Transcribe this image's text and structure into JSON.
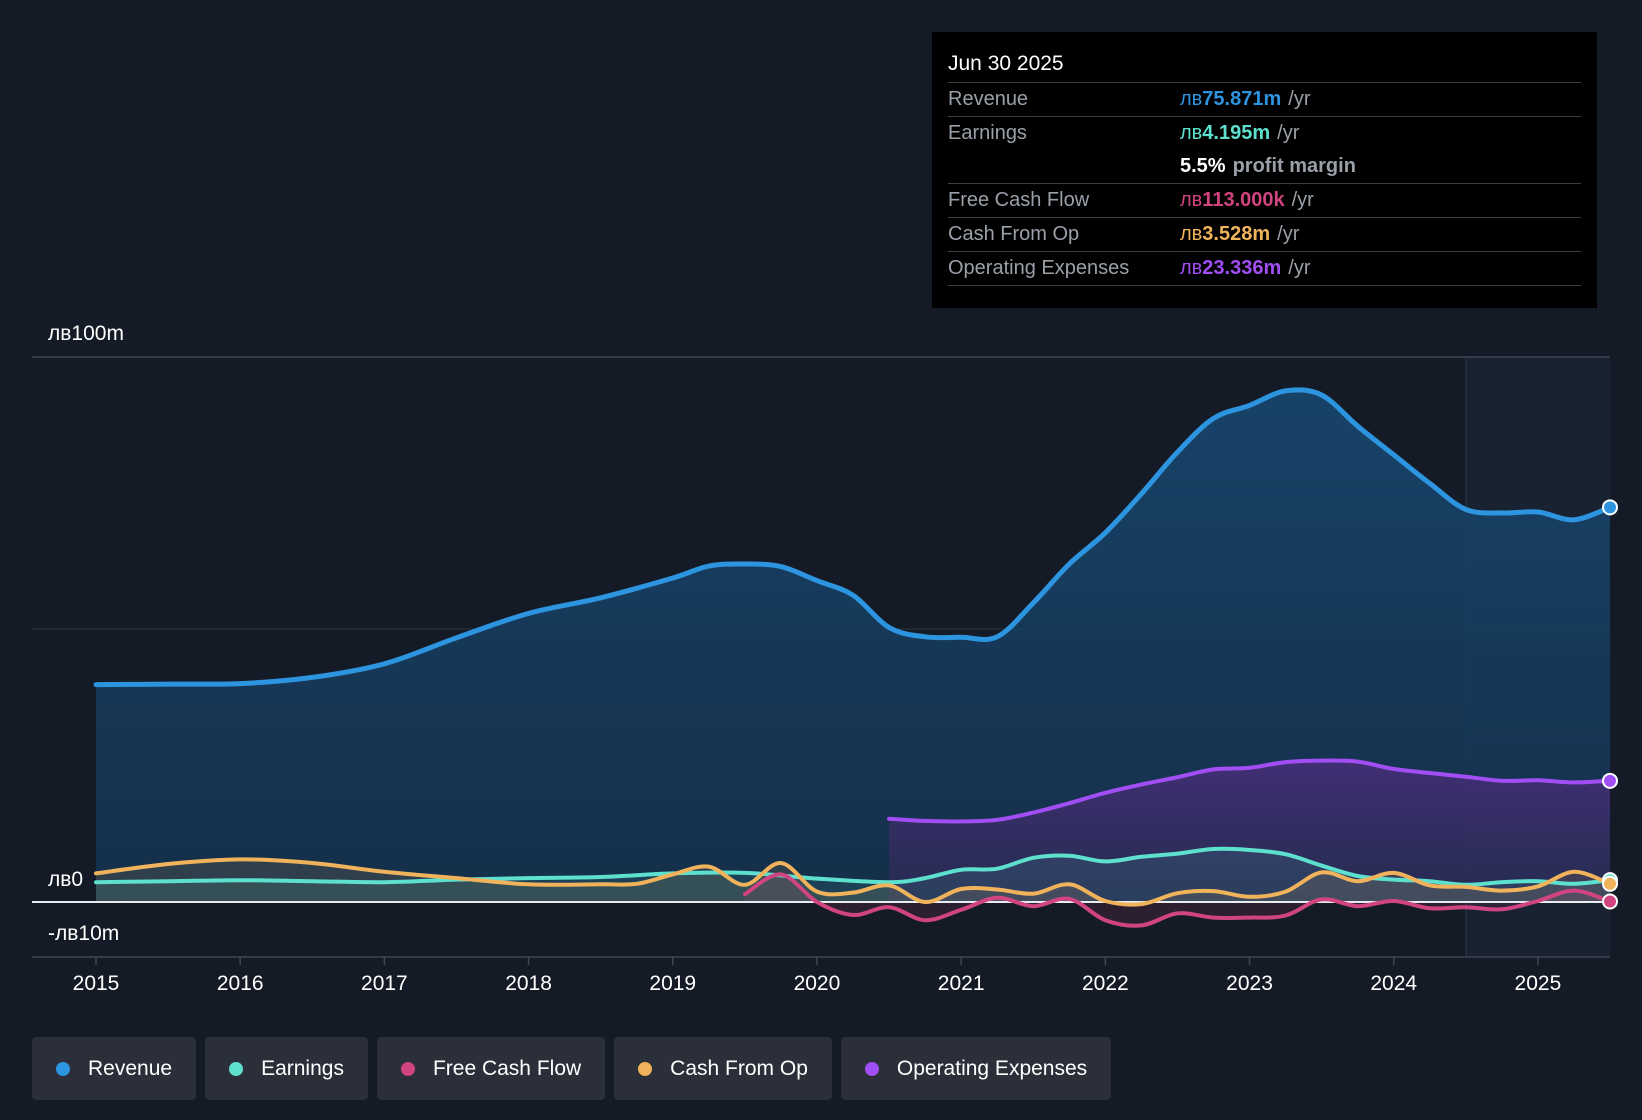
{
  "tooltip": {
    "date": "Jun 30 2025",
    "rows": [
      {
        "label": "Revenue",
        "currency": "лв",
        "value": "75.871m",
        "unit": "/yr",
        "color": "#2d94e0"
      },
      {
        "label": "Earnings",
        "currency": "лв",
        "value": "4.195m",
        "unit": "/yr",
        "color": "#5ee0cf"
      },
      {
        "label": "",
        "currency": "",
        "value": "5.5%",
        "unit": "profit margin",
        "color": "#ffffff"
      },
      {
        "label": "Free Cash Flow",
        "currency": "лв",
        "value": "113.000k",
        "unit": "/yr",
        "color": "#d0447f"
      },
      {
        "label": "Cash From Op",
        "currency": "лв",
        "value": "3.528m",
        "unit": "/yr",
        "color": "#f0b35c"
      },
      {
        "label": "Operating Expenses",
        "currency": "лв",
        "value": "23.336m",
        "unit": "/yr",
        "color": "#a24ef5"
      }
    ]
  },
  "legend": [
    {
      "label": "Revenue",
      "color": "#2d94e0"
    },
    {
      "label": "Earnings",
      "color": "#5ee0cf"
    },
    {
      "label": "Free Cash Flow",
      "color": "#d0447f"
    },
    {
      "label": "Cash From Op",
      "color": "#f0b35c"
    },
    {
      "label": "Operating Expenses",
      "color": "#a24ef5"
    }
  ],
  "chart_data": {
    "type": "area",
    "title": "",
    "xlabel": "",
    "ylabel": "",
    "x_ticks": [
      "2015",
      "2016",
      "2017",
      "2018",
      "2019",
      "2020",
      "2021",
      "2022",
      "2023",
      "2024",
      "2025"
    ],
    "y_ticks": [
      "лв100m",
      "лв0",
      "-лв10m"
    ],
    "ylim": [
      -10,
      100
    ],
    "xlim": [
      2015.0,
      2025.5
    ],
    "forecast_start": 2024.5,
    "series": [
      {
        "name": "Revenue",
        "color": "#2d94e0",
        "points": [
          [
            2015.0,
            41.8
          ],
          [
            2015.5,
            41.9
          ],
          [
            2016.0,
            42.0
          ],
          [
            2016.5,
            43.2
          ],
          [
            2017.0,
            45.8
          ],
          [
            2017.5,
            50.8
          ],
          [
            2018.0,
            55.5
          ],
          [
            2018.5,
            58.5
          ],
          [
            2019.0,
            62.3
          ],
          [
            2019.25,
            64.6
          ],
          [
            2019.5,
            65.0
          ],
          [
            2019.75,
            64.5
          ],
          [
            2020.0,
            61.8
          ],
          [
            2020.25,
            59.0
          ],
          [
            2020.5,
            52.8
          ],
          [
            2020.75,
            51.0
          ],
          [
            2021.0,
            50.9
          ],
          [
            2021.25,
            51.0
          ],
          [
            2021.5,
            57.5
          ],
          [
            2021.75,
            65.0
          ],
          [
            2022.0,
            71.0
          ],
          [
            2022.25,
            78.5
          ],
          [
            2022.5,
            86.5
          ],
          [
            2022.75,
            93.0
          ],
          [
            2023.0,
            95.5
          ],
          [
            2023.25,
            98.3
          ],
          [
            2023.5,
            97.5
          ],
          [
            2023.75,
            91.5
          ],
          [
            2024.0,
            86.0
          ],
          [
            2024.25,
            80.5
          ],
          [
            2024.5,
            75.5
          ],
          [
            2024.75,
            74.8
          ],
          [
            2025.0,
            75.0
          ],
          [
            2025.25,
            73.5
          ],
          [
            2025.5,
            75.9
          ]
        ]
      },
      {
        "name": "Earnings",
        "color": "#5ee0cf",
        "points": [
          [
            2015.0,
            3.8
          ],
          [
            2015.5,
            4.0
          ],
          [
            2016.0,
            4.2
          ],
          [
            2016.5,
            4.0
          ],
          [
            2017.0,
            3.8
          ],
          [
            2017.5,
            4.3
          ],
          [
            2018.0,
            4.6
          ],
          [
            2018.5,
            4.8
          ],
          [
            2019.0,
            5.5
          ],
          [
            2019.5,
            5.6
          ],
          [
            2020.0,
            4.5
          ],
          [
            2020.5,
            3.8
          ],
          [
            2020.75,
            4.6
          ],
          [
            2021.0,
            6.2
          ],
          [
            2021.25,
            6.4
          ],
          [
            2021.5,
            8.5
          ],
          [
            2021.75,
            8.9
          ],
          [
            2022.0,
            7.8
          ],
          [
            2022.25,
            8.7
          ],
          [
            2022.5,
            9.3
          ],
          [
            2022.75,
            10.2
          ],
          [
            2023.0,
            10.0
          ],
          [
            2023.25,
            9.2
          ],
          [
            2023.5,
            7.0
          ],
          [
            2023.75,
            5.0
          ],
          [
            2024.0,
            4.3
          ],
          [
            2024.25,
            4.0
          ],
          [
            2024.5,
            3.3
          ],
          [
            2024.75,
            3.8
          ],
          [
            2025.0,
            4.0
          ],
          [
            2025.25,
            3.5
          ],
          [
            2025.5,
            4.2
          ]
        ]
      },
      {
        "name": "Free Cash Flow",
        "color": "#d0447f",
        "points": [
          [
            2019.5,
            1.5
          ],
          [
            2019.75,
            5.3
          ],
          [
            2020.0,
            0.0
          ],
          [
            2020.25,
            -2.5
          ],
          [
            2020.5,
            -1.0
          ],
          [
            2020.75,
            -3.5
          ],
          [
            2021.0,
            -1.5
          ],
          [
            2021.25,
            0.8
          ],
          [
            2021.5,
            -0.8
          ],
          [
            2021.75,
            0.6
          ],
          [
            2022.0,
            -3.5
          ],
          [
            2022.25,
            -4.5
          ],
          [
            2022.5,
            -2.2
          ],
          [
            2022.75,
            -3.0
          ],
          [
            2023.0,
            -3.0
          ],
          [
            2023.25,
            -2.6
          ],
          [
            2023.5,
            0.5
          ],
          [
            2023.75,
            -0.8
          ],
          [
            2024.0,
            0.2
          ],
          [
            2024.25,
            -1.2
          ],
          [
            2024.5,
            -1.0
          ],
          [
            2024.75,
            -1.4
          ],
          [
            2025.0,
            0.2
          ],
          [
            2025.25,
            2.2
          ],
          [
            2025.5,
            0.1
          ]
        ]
      },
      {
        "name": "Cash From Op",
        "color": "#f0b35c",
        "points": [
          [
            2015.0,
            5.5
          ],
          [
            2015.5,
            7.3
          ],
          [
            2016.0,
            8.2
          ],
          [
            2016.5,
            7.5
          ],
          [
            2017.0,
            5.8
          ],
          [
            2017.5,
            4.6
          ],
          [
            2018.0,
            3.4
          ],
          [
            2018.5,
            3.4
          ],
          [
            2018.75,
            3.5
          ],
          [
            2019.0,
            5.3
          ],
          [
            2019.25,
            6.8
          ],
          [
            2019.5,
            3.3
          ],
          [
            2019.75,
            7.5
          ],
          [
            2020.0,
            2.0
          ],
          [
            2020.25,
            1.8
          ],
          [
            2020.5,
            3.2
          ],
          [
            2020.75,
            0.0
          ],
          [
            2021.0,
            2.5
          ],
          [
            2021.25,
            2.4
          ],
          [
            2021.5,
            1.6
          ],
          [
            2021.75,
            3.4
          ],
          [
            2022.0,
            0.2
          ],
          [
            2022.25,
            -0.4
          ],
          [
            2022.5,
            1.7
          ],
          [
            2022.75,
            2.1
          ],
          [
            2023.0,
            1.0
          ],
          [
            2023.25,
            2.0
          ],
          [
            2023.5,
            5.7
          ],
          [
            2023.75,
            4.0
          ],
          [
            2024.0,
            5.6
          ],
          [
            2024.25,
            3.2
          ],
          [
            2024.5,
            2.9
          ],
          [
            2024.75,
            2.2
          ],
          [
            2025.0,
            3.0
          ],
          [
            2025.25,
            5.8
          ],
          [
            2025.5,
            3.5
          ]
        ]
      },
      {
        "name": "Operating Expenses",
        "color": "#a24ef5",
        "points": [
          [
            2020.5,
            16.0
          ],
          [
            2020.75,
            15.6
          ],
          [
            2021.0,
            15.5
          ],
          [
            2021.25,
            15.8
          ],
          [
            2021.5,
            17.2
          ],
          [
            2021.75,
            19.0
          ],
          [
            2022.0,
            21.0
          ],
          [
            2022.25,
            22.6
          ],
          [
            2022.5,
            24.0
          ],
          [
            2022.75,
            25.5
          ],
          [
            2023.0,
            25.8
          ],
          [
            2023.25,
            26.9
          ],
          [
            2023.5,
            27.2
          ],
          [
            2023.75,
            27.0
          ],
          [
            2024.0,
            25.6
          ],
          [
            2024.25,
            24.8
          ],
          [
            2024.5,
            24.1
          ],
          [
            2024.75,
            23.3
          ],
          [
            2025.0,
            23.4
          ],
          [
            2025.25,
            23.0
          ],
          [
            2025.5,
            23.3
          ]
        ]
      }
    ]
  }
}
